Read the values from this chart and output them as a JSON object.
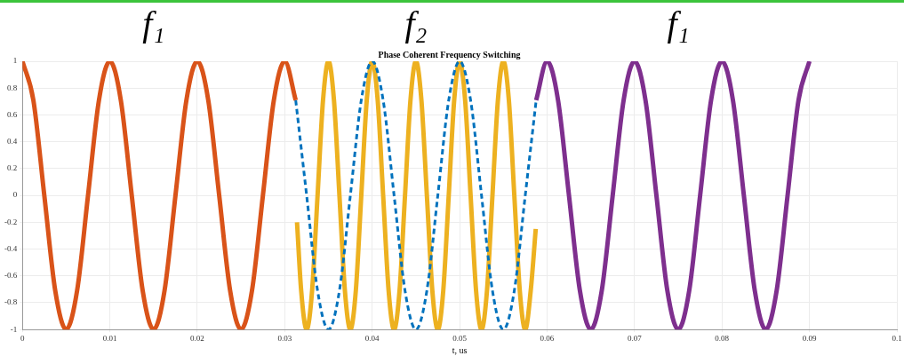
{
  "chart_data": {
    "type": "line",
    "title": "Phase Coherent Frequency Switching",
    "xlabel": "t, us",
    "annotations": [
      "f₁",
      "f₂",
      "f₁"
    ],
    "xlim": [
      0,
      0.1
    ],
    "xticks": [
      0,
      0.01,
      0.02,
      0.03,
      0.04,
      0.05,
      0.06,
      0.07,
      0.08,
      0.09,
      0.1
    ],
    "ylim": [
      -1,
      1
    ],
    "yticks": [
      -1,
      -0.8,
      -0.6,
      -0.4,
      -0.2,
      0,
      0.2,
      0.4,
      0.6,
      0.8,
      1
    ],
    "grid": true,
    "legend": false,
    "marker": "none",
    "series": [
      {
        "color": "#d95319",
        "line_style": "solid",
        "x": [
          0,
          0.00125,
          0.0025,
          0.00375,
          0.005,
          0.00625,
          0.0075,
          0.00875,
          0.01,
          0.01125,
          0.0125,
          0.01375,
          0.015,
          0.01625,
          0.0175,
          0.01875,
          0.02,
          0.02125,
          0.0225,
          0.02375,
          0.025,
          0.02625,
          0.0275,
          0.02875,
          0.03,
          0.03125
        ],
        "values": [
          1,
          0.71,
          0,
          -0.71,
          -1,
          -0.71,
          0,
          0.71,
          1,
          0.71,
          0,
          -0.71,
          -1,
          -0.71,
          0,
          0.71,
          1,
          0.71,
          0,
          -0.71,
          -1,
          -0.71,
          0,
          0.71,
          1,
          0.71
        ]
      },
      {
        "color": "#0072bd",
        "line_style": "dashed",
        "x": [
          0.03125,
          0.0325,
          0.03375,
          0.035,
          0.03625,
          0.0375,
          0.03875,
          0.04,
          0.04125,
          0.0425,
          0.04375,
          0.045,
          0.04625,
          0.0475,
          0.04875,
          0.05,
          0.05125,
          0.0525,
          0.05375,
          0.055,
          0.05625,
          0.0575,
          0.05875
        ],
        "values": [
          0.71,
          0,
          -0.71,
          -1,
          -0.71,
          0,
          0.71,
          1,
          0.71,
          0,
          -0.71,
          -1,
          -0.71,
          0,
          0.71,
          1,
          0.71,
          0,
          -0.71,
          -1,
          -0.71,
          0,
          0.71
        ]
      },
      {
        "color": "#edb120",
        "line_style": "solid",
        "x": [
          0.0314,
          0.031875,
          0.0325,
          0.033125,
          0.03375,
          0.034375,
          0.035,
          0.035625,
          0.03625,
          0.036875,
          0.0375,
          0.038125,
          0.03875,
          0.039375,
          0.04,
          0.040625,
          0.04125,
          0.041875,
          0.0425,
          0.043125,
          0.04375,
          0.044375,
          0.045,
          0.045625,
          0.04625,
          0.046875,
          0.0475,
          0.048125,
          0.04875,
          0.049375,
          0.05,
          0.050625,
          0.05125,
          0.051875,
          0.0525,
          0.053125,
          0.05375,
          0.054375,
          0.055,
          0.055625,
          0.05625,
          0.056875,
          0.0575,
          0.058125,
          0.0587
        ],
        "values": [
          -0.2,
          -0.71,
          -1,
          -0.71,
          0,
          0.71,
          1,
          0.71,
          0,
          -0.71,
          -1,
          -0.71,
          0,
          0.71,
          1,
          0.71,
          0,
          -0.71,
          -1,
          -0.71,
          0,
          0.71,
          1,
          0.71,
          0,
          -0.71,
          -1,
          -0.71,
          0,
          0.71,
          1,
          0.71,
          0,
          -0.71,
          -1,
          -0.71,
          0,
          0.71,
          1,
          0.71,
          0,
          -0.71,
          -1,
          -0.71,
          -0.25
        ]
      },
      {
        "color": "#7e2f8e",
        "line_style": "solid",
        "x": [
          0.05875,
          0.06,
          0.06125,
          0.0625,
          0.06375,
          0.065,
          0.06625,
          0.0675,
          0.06875,
          0.07,
          0.07125,
          0.0725,
          0.07375,
          0.075,
          0.07625,
          0.0775,
          0.07875,
          0.08,
          0.08125,
          0.0825,
          0.08375,
          0.085,
          0.08625,
          0.0875,
          0.08875,
          0.09
        ],
        "values": [
          0.71,
          1,
          0.71,
          0,
          -0.71,
          -1,
          -0.71,
          0,
          0.71,
          1,
          0.71,
          0,
          -0.71,
          -1,
          -0.71,
          0,
          0.71,
          1,
          0.71,
          0,
          -0.71,
          -1,
          -0.71,
          0,
          0.71,
          1
        ]
      }
    ]
  }
}
